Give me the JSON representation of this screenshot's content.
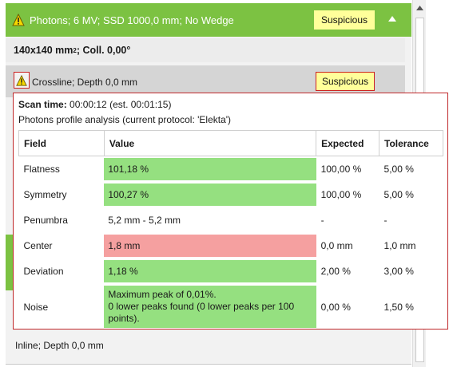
{
  "header": {
    "title": "Photons; 6 MV; SSD 1000,0 mm; No Wedge",
    "status": "Suspicious"
  },
  "subheader": {
    "field_size": "140x140 mm",
    "field_size_sup": "2",
    "collimator": "; Coll. 0,00°"
  },
  "crossline": {
    "label": "Crossline; Depth 0,0 mm",
    "status": "Suspicious"
  },
  "tooltip": {
    "scan_label": "Scan time:",
    "scan_value": " 00:00:12 (est. 00:01:15)",
    "analysis": "Photons profile analysis (current protocol: 'Elekta')",
    "columns": [
      "Field",
      "Value",
      "Expected",
      "Tolerance"
    ],
    "rows": [
      {
        "field": "Flatness",
        "value": "101,18 %",
        "expected": "100,00 %",
        "tolerance": "5,00 %",
        "status": "green"
      },
      {
        "field": "Symmetry",
        "value": "100,27 %",
        "expected": "100,00 %",
        "tolerance": "5,00 %",
        "status": "green"
      },
      {
        "field": "Penumbra",
        "value": "5,2 mm - 5,2 mm",
        "expected": "-",
        "tolerance": "-",
        "status": "none"
      },
      {
        "field": "Center",
        "value": "1,8 mm",
        "expected": "0,0 mm",
        "tolerance": "1,0 mm",
        "status": "red"
      },
      {
        "field": "Deviation",
        "value": "1,18 %",
        "expected": "2,00 %",
        "tolerance": "3,00 %",
        "status": "green"
      }
    ],
    "noise": {
      "field": "Noise",
      "value_line1": "Maximum peak of 0,01%.",
      "value_line2": "0 lower peaks found (0 lower peaks per 100 points).",
      "expected": "0,00 %",
      "tolerance": "1,50 %"
    }
  },
  "inline": {
    "label": "Inline; Depth 0,0 mm"
  },
  "colors": {
    "header_green": "#7cc242",
    "badge_yellow": "#ffff9a",
    "pass_green": "#95e080",
    "fail_red": "#f5a0a0",
    "border_red": "#c0282a"
  },
  "icons": {
    "warning": "warning-triangle-icon",
    "collapse": "chevron-up-icon",
    "scroll_up": "scroll-up-arrow-icon"
  }
}
